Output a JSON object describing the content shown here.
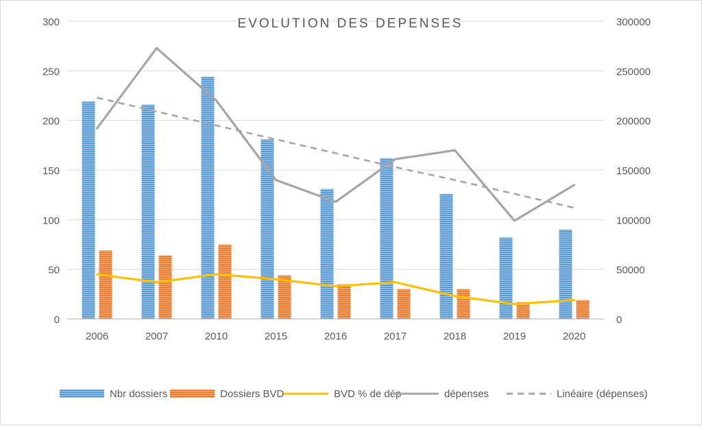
{
  "chart_data": {
    "type": "bar",
    "title": "EVOLUTION DES DEPENSES",
    "categories": [
      "2006",
      "2007",
      "2010",
      "2015",
      "2016",
      "2017",
      "2018",
      "2019",
      "2020"
    ],
    "y_left": {
      "ticks": [
        0,
        50,
        100,
        150,
        200,
        250,
        300
      ],
      "range": [
        0,
        300
      ]
    },
    "y_right": {
      "ticks": [
        0,
        50000,
        100000,
        150000,
        200000,
        250000,
        300000
      ],
      "range": [
        0,
        300000
      ]
    },
    "grid": true,
    "legend_position": "bottom",
    "series": [
      {
        "name": "Nbr dossiers",
        "kind": "bar",
        "axis": "left",
        "color": "#5b9bd5",
        "values": [
          219,
          216,
          244,
          181,
          131,
          162,
          126,
          82,
          90
        ]
      },
      {
        "name": "Dossiers BVD",
        "kind": "bar",
        "axis": "left",
        "color": "#ed7d31",
        "values": [
          69,
          64,
          75,
          44,
          35,
          30,
          30,
          17,
          19
        ]
      },
      {
        "name": "BVD % de dép",
        "kind": "line",
        "axis": "left",
        "color": "#ffc000",
        "values": [
          45,
          37,
          45,
          40,
          33,
          37,
          23,
          15,
          19
        ]
      },
      {
        "name": "dépenses",
        "kind": "line",
        "axis": "right",
        "color": "#a5a5a5",
        "values": [
          192000,
          273000,
          220000,
          140000,
          118000,
          161000,
          170000,
          99000,
          135000
        ]
      },
      {
        "name": "Linéaire (dépenses)",
        "kind": "trendline",
        "axis": "right",
        "color": "#a5a5a5",
        "values": [
          223000,
          209000,
          195000,
          181000,
          167000,
          153000,
          140000,
          126000,
          112000
        ]
      }
    ]
  }
}
